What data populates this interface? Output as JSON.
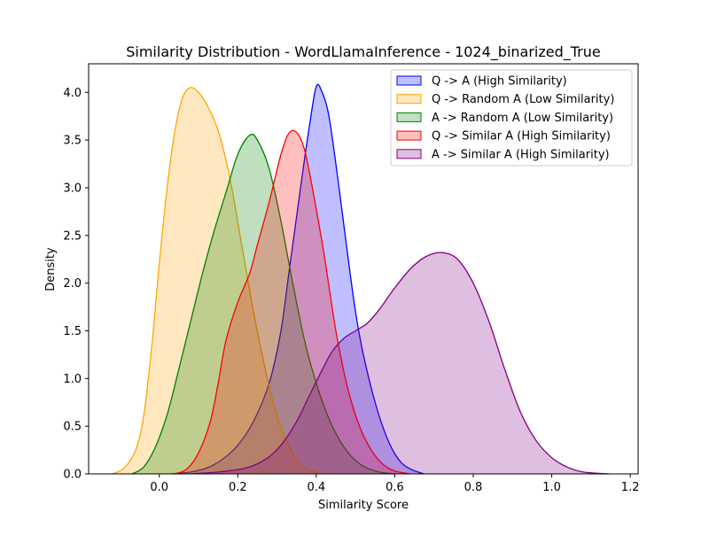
{
  "chart_data": {
    "type": "area",
    "title": "Similarity Distribution - WordLlamaInference - 1024_binarized_True",
    "xlabel": "Similarity Score",
    "ylabel": "Density",
    "xlim": [
      -0.18,
      1.22
    ],
    "ylim": [
      0,
      4.3
    ],
    "xticks": [
      0.0,
      0.2,
      0.4,
      0.6,
      0.8,
      1.0,
      1.2
    ],
    "xtick_labels": [
      "0.0",
      "0.2",
      "0.4",
      "0.6",
      "0.8",
      "1.0",
      "1.2"
    ],
    "yticks": [
      0.0,
      0.5,
      1.0,
      1.5,
      2.0,
      2.5,
      3.0,
      3.5,
      4.0
    ],
    "ytick_labels": [
      "0.0",
      "0.5",
      "1.0",
      "1.5",
      "2.0",
      "2.5",
      "3.0",
      "3.5",
      "4.0"
    ],
    "grid": false,
    "legend_position": "top-right",
    "series": [
      {
        "name": "Q -> A (High Similarity)",
        "color": "#0000ff",
        "fill": "rgba(0,0,255,0.25)",
        "points": [
          [
            0.03,
            0.0
          ],
          [
            0.08,
            0.02
          ],
          [
            0.12,
            0.06
          ],
          [
            0.16,
            0.15
          ],
          [
            0.2,
            0.3
          ],
          [
            0.24,
            0.55
          ],
          [
            0.28,
            0.95
          ],
          [
            0.31,
            1.5
          ],
          [
            0.33,
            2.1
          ],
          [
            0.35,
            2.7
          ],
          [
            0.37,
            3.3
          ],
          [
            0.39,
            3.85
          ],
          [
            0.4,
            4.06
          ],
          [
            0.41,
            4.05
          ],
          [
            0.43,
            3.8
          ],
          [
            0.45,
            3.25
          ],
          [
            0.48,
            2.3
          ],
          [
            0.5,
            1.7
          ],
          [
            0.52,
            1.25
          ],
          [
            0.55,
            0.75
          ],
          [
            0.58,
            0.38
          ],
          [
            0.61,
            0.15
          ],
          [
            0.64,
            0.05
          ],
          [
            0.675,
            0.0
          ]
        ]
      },
      {
        "name": "Q -> Random A (Low Similarity)",
        "color": "#ffa500",
        "fill": "rgba(255,165,0,0.25)",
        "points": [
          [
            -0.12,
            0.0
          ],
          [
            -0.09,
            0.06
          ],
          [
            -0.06,
            0.25
          ],
          [
            -0.04,
            0.6
          ],
          [
            -0.02,
            1.3
          ],
          [
            0.0,
            2.2
          ],
          [
            0.02,
            3.0
          ],
          [
            0.04,
            3.6
          ],
          [
            0.06,
            3.95
          ],
          [
            0.08,
            4.05
          ],
          [
            0.1,
            4.0
          ],
          [
            0.12,
            3.88
          ],
          [
            0.15,
            3.6
          ],
          [
            0.18,
            3.1
          ],
          [
            0.21,
            2.4
          ],
          [
            0.24,
            1.7
          ],
          [
            0.27,
            1.1
          ],
          [
            0.3,
            0.6
          ],
          [
            0.33,
            0.3
          ],
          [
            0.36,
            0.1
          ],
          [
            0.39,
            0.03
          ],
          [
            0.42,
            0.0
          ]
        ]
      },
      {
        "name": "A -> Random A (Low Similarity)",
        "color": "#008000",
        "fill": "rgba(0,128,0,0.25)",
        "points": [
          [
            -0.07,
            0.0
          ],
          [
            -0.04,
            0.07
          ],
          [
            -0.01,
            0.28
          ],
          [
            0.02,
            0.62
          ],
          [
            0.05,
            1.1
          ],
          [
            0.08,
            1.6
          ],
          [
            0.11,
            2.1
          ],
          [
            0.14,
            2.55
          ],
          [
            0.17,
            2.95
          ],
          [
            0.2,
            3.35
          ],
          [
            0.23,
            3.55
          ],
          [
            0.25,
            3.5
          ],
          [
            0.28,
            3.2
          ],
          [
            0.31,
            2.65
          ],
          [
            0.34,
            2.0
          ],
          [
            0.37,
            1.4
          ],
          [
            0.4,
            0.95
          ],
          [
            0.43,
            0.6
          ],
          [
            0.46,
            0.35
          ],
          [
            0.49,
            0.18
          ],
          [
            0.52,
            0.08
          ],
          [
            0.56,
            0.02
          ],
          [
            0.6,
            0.0
          ]
        ]
      },
      {
        "name": "Q -> Similar A (High Similarity)",
        "color": "#ff0000",
        "fill": "rgba(255,0,0,0.25)",
        "points": [
          [
            0.04,
            0.0
          ],
          [
            0.07,
            0.05
          ],
          [
            0.1,
            0.22
          ],
          [
            0.13,
            0.55
          ],
          [
            0.15,
            0.95
          ],
          [
            0.17,
            1.4
          ],
          [
            0.2,
            1.8
          ],
          [
            0.23,
            2.1
          ],
          [
            0.25,
            2.4
          ],
          [
            0.28,
            2.85
          ],
          [
            0.31,
            3.35
          ],
          [
            0.33,
            3.57
          ],
          [
            0.35,
            3.58
          ],
          [
            0.37,
            3.4
          ],
          [
            0.39,
            3.0
          ],
          [
            0.42,
            2.3
          ],
          [
            0.45,
            1.5
          ],
          [
            0.48,
            0.9
          ],
          [
            0.51,
            0.5
          ],
          [
            0.54,
            0.25
          ],
          [
            0.57,
            0.1
          ],
          [
            0.6,
            0.03
          ],
          [
            0.64,
            0.0
          ]
        ]
      },
      {
        "name": "A -> Similar A (High Similarity)",
        "color": "#800080",
        "fill": "rgba(128,0,128,0.25)",
        "points": [
          [
            0.08,
            0.0
          ],
          [
            0.15,
            0.02
          ],
          [
            0.22,
            0.06
          ],
          [
            0.27,
            0.15
          ],
          [
            0.31,
            0.3
          ],
          [
            0.35,
            0.55
          ],
          [
            0.38,
            0.8
          ],
          [
            0.41,
            1.05
          ],
          [
            0.44,
            1.28
          ],
          [
            0.47,
            1.42
          ],
          [
            0.5,
            1.5
          ],
          [
            0.53,
            1.58
          ],
          [
            0.56,
            1.72
          ],
          [
            0.6,
            1.95
          ],
          [
            0.64,
            2.15
          ],
          [
            0.68,
            2.28
          ],
          [
            0.72,
            2.32
          ],
          [
            0.76,
            2.25
          ],
          [
            0.8,
            2.0
          ],
          [
            0.84,
            1.6
          ],
          [
            0.88,
            1.1
          ],
          [
            0.92,
            0.65
          ],
          [
            0.96,
            0.35
          ],
          [
            1.0,
            0.17
          ],
          [
            1.04,
            0.07
          ],
          [
            1.08,
            0.02
          ],
          [
            1.145,
            0.0
          ]
        ]
      }
    ]
  }
}
